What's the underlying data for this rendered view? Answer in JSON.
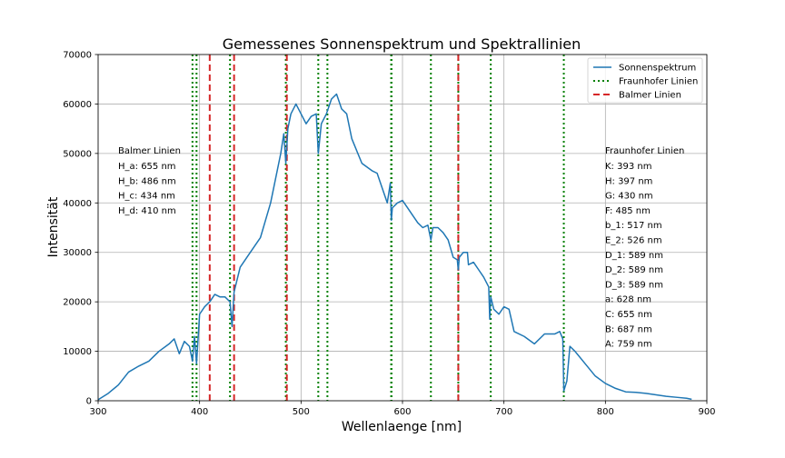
{
  "chart_data": {
    "type": "line",
    "title": "Gemessenes Sonnenspektrum und Spektrallinien",
    "xlabel": "Wellenlaenge [nm]",
    "ylabel": "Intensität",
    "xlim": [
      300,
      900
    ],
    "ylim": [
      0,
      70000
    ],
    "xticks": [
      300,
      400,
      500,
      600,
      700,
      800,
      900
    ],
    "yticks": [
      0,
      10000,
      20000,
      30000,
      40000,
      50000,
      60000,
      70000
    ],
    "grid": true,
    "legend_position": "top-right",
    "series": [
      {
        "name": "Sonnenspektrum",
        "color": "#1f77b4",
        "style": "solid",
        "x": [
          300,
          310,
          320,
          330,
          340,
          350,
          360,
          370,
          375,
          380,
          385,
          390,
          393,
          395,
          397,
          400,
          405,
          410,
          415,
          420,
          425,
          430,
          432,
          434,
          440,
          450,
          460,
          470,
          480,
          483,
          485,
          487,
          490,
          495,
          500,
          505,
          510,
          515,
          517,
          520,
          525,
          530,
          535,
          540,
          545,
          550,
          560,
          570,
          575,
          580,
          585,
          588,
          589,
          590,
          595,
          600,
          605,
          610,
          615,
          620,
          625,
          628,
          630,
          635,
          640,
          645,
          650,
          654,
          655,
          656,
          660,
          664,
          665,
          670,
          675,
          680,
          685,
          686,
          687,
          690,
          695,
          700,
          705,
          710,
          720,
          730,
          740,
          750,
          755,
          758,
          759,
          762,
          765,
          770,
          780,
          790,
          800,
          810,
          820,
          830,
          840,
          850,
          860,
          870,
          880,
          885
        ],
        "y": [
          200,
          1500,
          3200,
          5800,
          7000,
          8000,
          10000,
          11500,
          12500,
          9500,
          12000,
          11000,
          8000,
          13000,
          7500,
          17500,
          19000,
          20000,
          21500,
          21000,
          21000,
          20000,
          15000,
          22000,
          27000,
          30000,
          33000,
          40000,
          50000,
          54000,
          48000,
          55000,
          58000,
          60000,
          58000,
          56000,
          57500,
          58000,
          50000,
          56000,
          58000,
          61000,
          62000,
          59000,
          58000,
          53000,
          48000,
          46500,
          46000,
          43000,
          40000,
          44000,
          36500,
          39000,
          40000,
          40500,
          39000,
          37500,
          36000,
          35000,
          35500,
          32500,
          35000,
          35000,
          34000,
          32500,
          29000,
          28500,
          26500,
          29000,
          30000,
          30000,
          27500,
          28000,
          26500,
          25000,
          23000,
          16500,
          21000,
          18500,
          17500,
          19000,
          18500,
          14000,
          13000,
          11500,
          13500,
          13500,
          14000,
          12500,
          2000,
          4000,
          11000,
          10000,
          7500,
          5000,
          3500,
          2500,
          1800,
          1700,
          1500,
          1200,
          900,
          700,
          500,
          300
        ]
      }
    ],
    "vlines": [
      {
        "name": "Fraunhofer Linien",
        "color": "#008000",
        "style": "dotted",
        "x": [
          393,
          397,
          430,
          485,
          517,
          526,
          589,
          589,
          589,
          628,
          655,
          687,
          759
        ]
      },
      {
        "name": "Balmer Linien",
        "color": "#d62728",
        "style": "dashed",
        "x": [
          655,
          486,
          434,
          410
        ]
      }
    ],
    "annotations": {
      "left": {
        "heading": "Balmer Linien",
        "lines": [
          "H_a: 655 nm",
          "H_b: 486 nm",
          "H_c: 434 nm",
          "H_d: 410 nm"
        ]
      },
      "right": {
        "heading": "Fraunhofer Linien",
        "lines": [
          "K: 393 nm",
          "H: 397 nm",
          "G: 430 nm",
          "F: 485 nm",
          "b_1: 517 nm",
          "E_2: 526 nm",
          "D_1: 589 nm",
          "D_2: 589 nm",
          "D_3: 589 nm",
          "a: 628 nm",
          "C: 655 nm",
          "B: 687 nm",
          "A: 759 nm"
        ]
      }
    }
  }
}
